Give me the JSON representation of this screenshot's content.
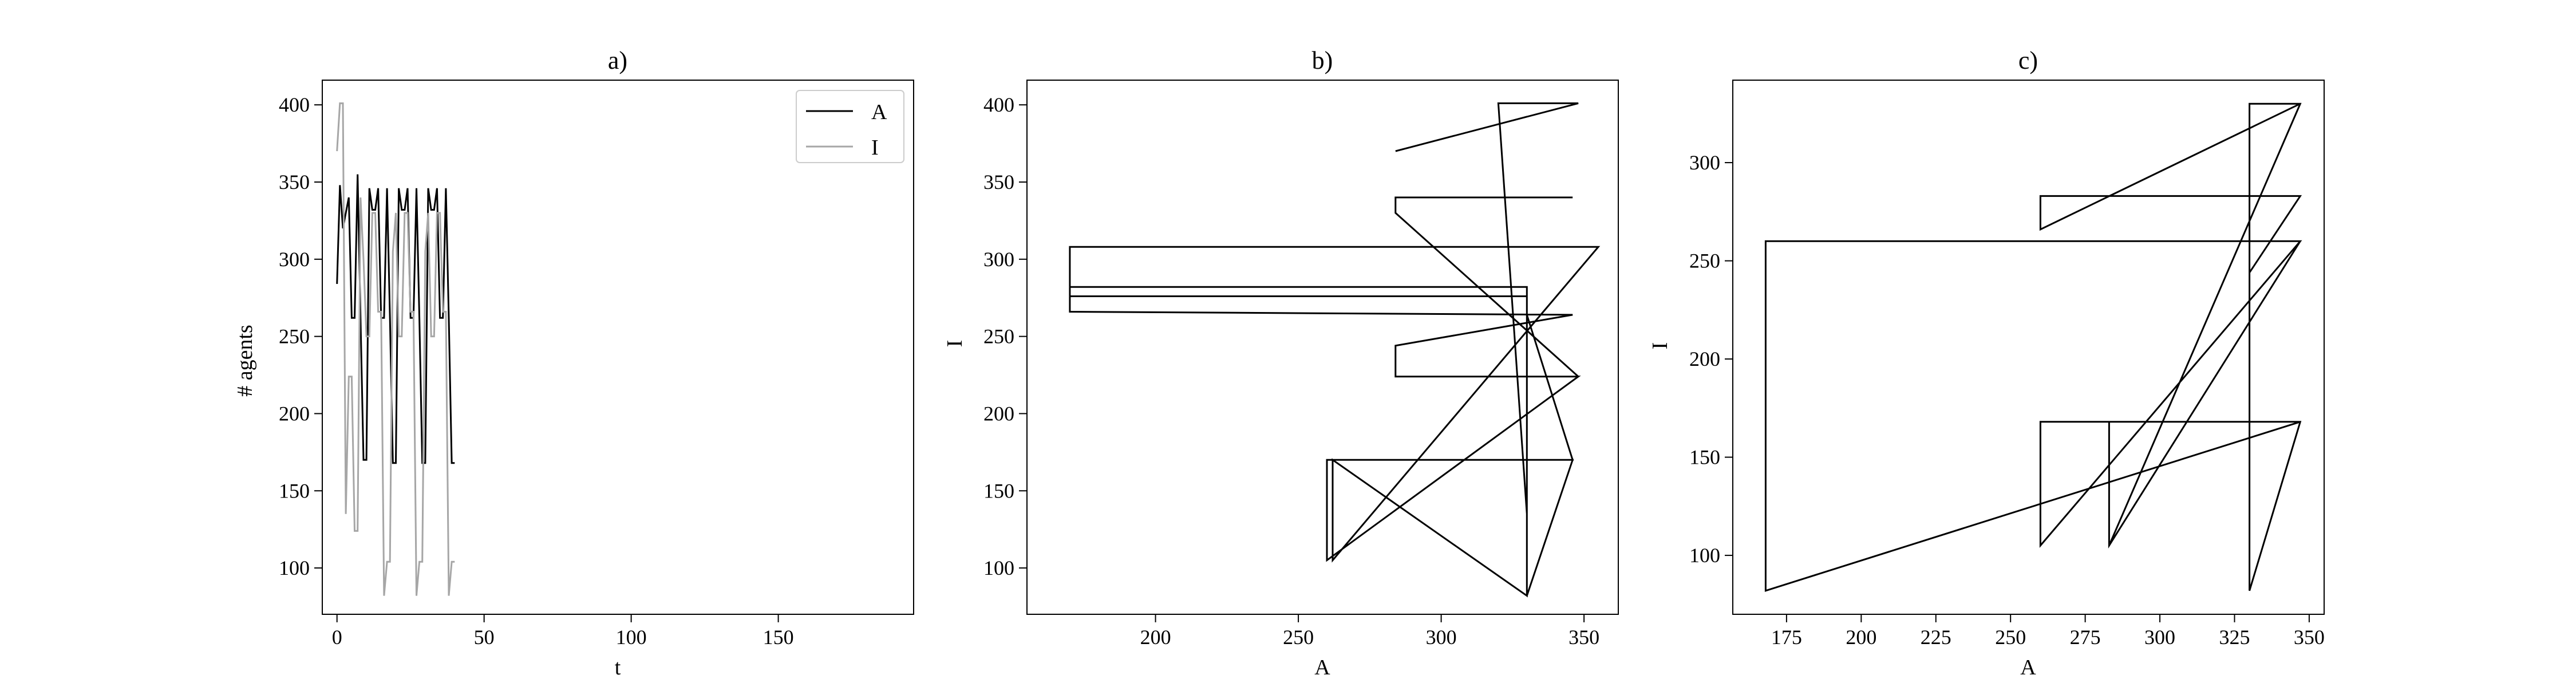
{
  "chart_data": [
    {
      "type": "line",
      "title": "a)",
      "xlabel": "t",
      "ylabel": "# agents",
      "xlim": [
        -5,
        196
      ],
      "ylim": [
        70,
        416
      ],
      "xticks": [
        0,
        50,
        100,
        150
      ],
      "yticks": [
        100,
        150,
        200,
        250,
        300,
        350,
        400
      ],
      "legend": {
        "position": "top-right",
        "entries": [
          "A",
          "I"
        ]
      },
      "grid": false,
      "series": [
        {
          "name": "A",
          "color": "#000000",
          "x": [
            0,
            1,
            2,
            3,
            4,
            5,
            6,
            7,
            8,
            9,
            10,
            11,
            12,
            13,
            14,
            15,
            16,
            17,
            18,
            19,
            20,
            21,
            22,
            23,
            24,
            25,
            26,
            27,
            28,
            29,
            30,
            31,
            32,
            33,
            34,
            35,
            36,
            37,
            38,
            39,
            40
          ],
          "y": [
            284,
            348,
            320,
            330,
            340,
            262,
            262,
            355,
            262,
            170,
            170,
            346,
            332,
            332,
            346,
            262,
            262,
            346,
            262,
            168,
            168,
            346,
            332,
            332,
            346,
            262,
            262,
            346,
            262,
            168,
            168,
            346,
            332,
            332,
            346,
            262,
            262,
            346,
            262,
            168,
            168
          ]
        },
        {
          "name": "I",
          "color": "#a6a6a6",
          "x": [
            0,
            1,
            2,
            3,
            4,
            5,
            6,
            7,
            8,
            9,
            10,
            11,
            12,
            13,
            14,
            15,
            16,
            17,
            18,
            19,
            20,
            21,
            22,
            23,
            24,
            25,
            26,
            27,
            28,
            29,
            30,
            31,
            32,
            33,
            34,
            35,
            36,
            37,
            38,
            39,
            40
          ],
          "y": [
            370,
            401,
            401,
            135,
            224,
            224,
            124,
            124,
            340,
            300,
            250,
            250,
            330,
            330,
            266,
            266,
            82,
            104,
            104,
            305,
            330,
            250,
            250,
            330,
            330,
            266,
            266,
            82,
            104,
            104,
            305,
            330,
            250,
            250,
            330,
            330,
            266,
            266,
            82,
            104,
            104
          ]
        }
      ]
    },
    {
      "type": "line",
      "title": "b)",
      "xlabel": "A",
      "ylabel": "I",
      "xlim": [
        155,
        362
      ],
      "ylim": [
        70,
        416
      ],
      "xticks": [
        200,
        250,
        300,
        350
      ],
      "yticks": [
        100,
        150,
        200,
        250,
        300,
        350,
        400
      ],
      "grid": false,
      "series": [
        {
          "name": "",
          "color": "#000000",
          "x": [
            284,
            348,
            320,
            330,
            330,
            262,
            262,
            355,
            170,
            170,
            330,
            330,
            346,
            260,
            260,
            348,
            284,
            284,
            346,
            170,
            170,
            330,
            330,
            346,
            260,
            260,
            348,
            284,
            284,
            346,
            170,
            170,
            330,
            330,
            346,
            260,
            260,
            348,
            284,
            284,
            346
          ],
          "y": [
            370,
            401,
            401,
            135,
            82,
            170,
            105,
            308,
            308,
            276,
            276,
            82,
            170,
            170,
            105,
            224,
            224,
            244,
            264,
            266,
            282,
            282,
            264,
            170,
            170,
            105,
            224,
            224,
            244,
            264,
            266,
            282,
            282,
            264,
            170,
            170,
            105,
            224,
            330,
            340,
            340
          ]
        }
      ]
    },
    {
      "type": "line",
      "title": "c)",
      "xlabel": "A",
      "ylabel": "I",
      "xlim": [
        157,
        355
      ],
      "ylim": [
        70,
        342
      ],
      "xticks": [
        175,
        200,
        225,
        250,
        275,
        300,
        325,
        350
      ],
      "yticks": [
        100,
        150,
        200,
        250,
        300
      ],
      "grid": false,
      "series": [
        {
          "name": "",
          "color": "#000000",
          "x": [
            330,
            347,
            260,
            260,
            347,
            330,
            330,
            347,
            283,
            283,
            347,
            168,
            168,
            347,
            283,
            283,
            347,
            330,
            330,
            347,
            260,
            260,
            347,
            330
          ],
          "y": [
            82,
            168,
            168,
            105,
            260,
            260,
            82,
            168,
            168,
            105,
            260,
            260,
            82,
            168,
            168,
            105,
            330,
            330,
            244,
            283,
            283,
            266,
            330,
            330
          ]
        }
      ]
    }
  ]
}
